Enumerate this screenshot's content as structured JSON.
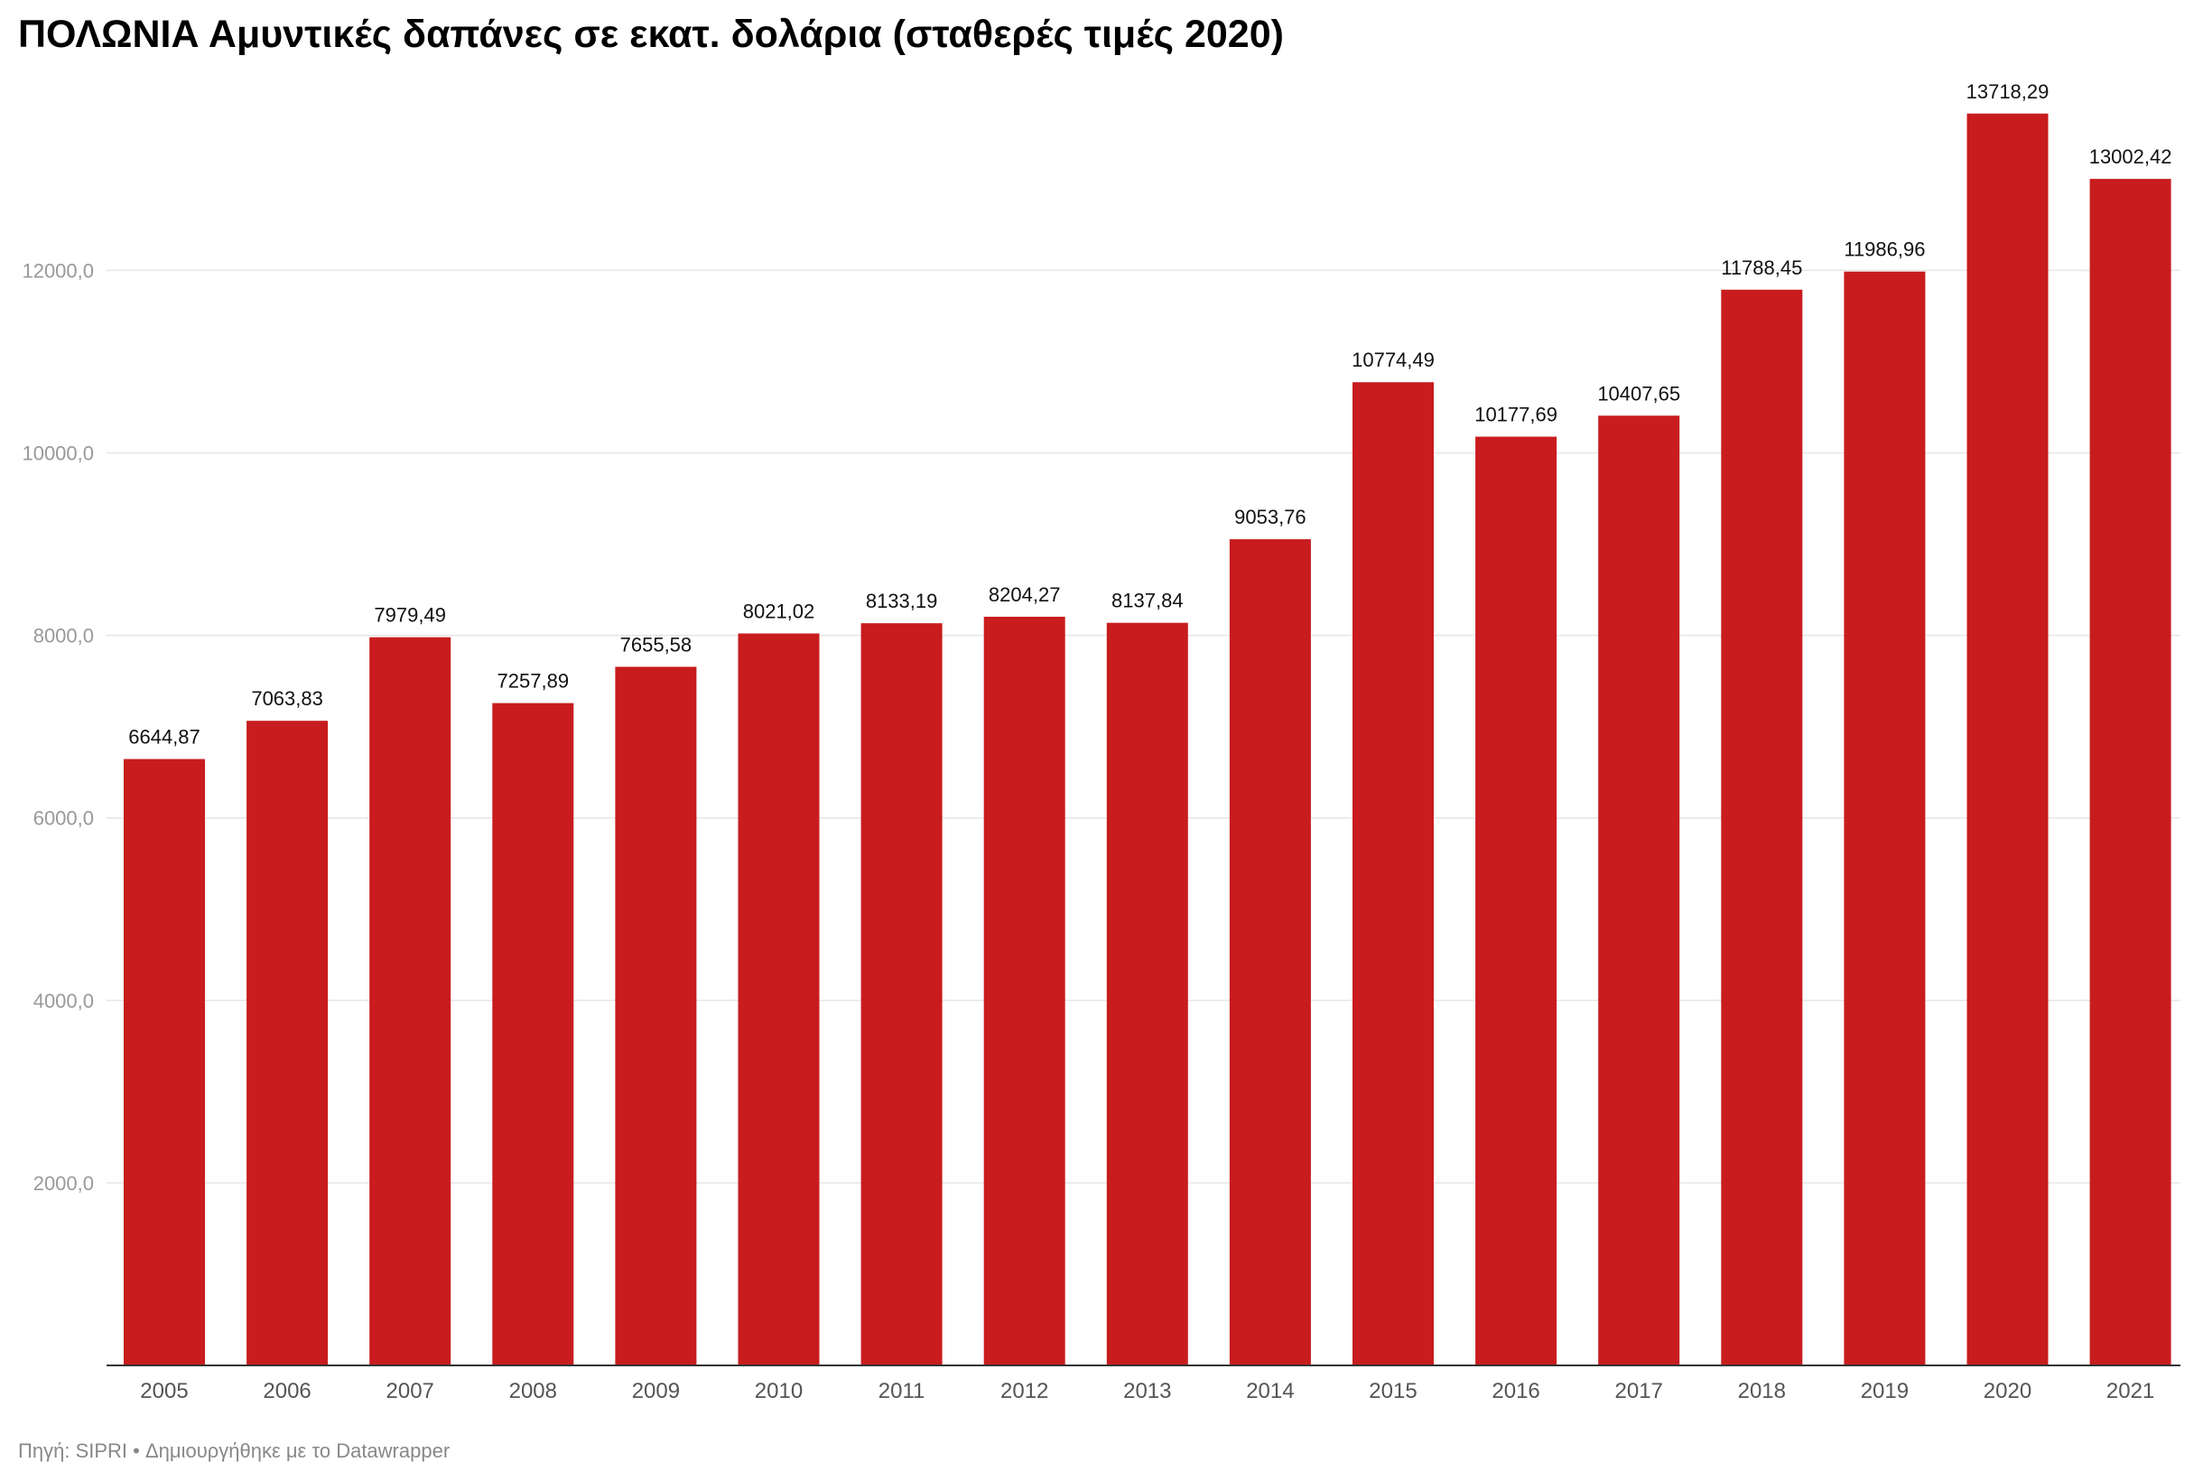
{
  "header": {
    "title": "ΠΟΛΩΝΙΑ Αμυντικές δαπάνες σε εκατ. δολάρια (σταθερές τιμές 2020)"
  },
  "footer": {
    "text": "Πηγή: SIPRI • Δημιουργήθηκε με το Datawrapper"
  },
  "colors": {
    "bar": "#c81c1e",
    "grid": "#e6e6e6",
    "axis": "#333333"
  },
  "chart_data": {
    "type": "bar",
    "title": "ΠΟΛΩΝΙΑ Αμυντικές δαπάνες σε εκατ. δολάρια (σταθερές τιμές 2020)",
    "xlabel": "",
    "ylabel": "",
    "categories": [
      "2005",
      "2006",
      "2007",
      "2008",
      "2009",
      "2010",
      "2011",
      "2012",
      "2013",
      "2014",
      "2015",
      "2016",
      "2017",
      "2018",
      "2019",
      "2020",
      "2021"
    ],
    "values": [
      6644.87,
      7063.83,
      7979.49,
      7257.89,
      7655.58,
      8021.02,
      8133.19,
      8204.27,
      8137.84,
      9053.76,
      10774.49,
      10177.69,
      10407.65,
      11788.45,
      11986.96,
      13718.29,
      13002.42
    ],
    "value_labels": [
      "6644,87",
      "7063,83",
      "7979,49",
      "7257,89",
      "7655,58",
      "8021,02",
      "8133,19",
      "8204,27",
      "8137,84",
      "9053,76",
      "10774,49",
      "10177,69",
      "10407,65",
      "11788,45",
      "11986,96",
      "13718,29",
      "13002,42"
    ],
    "yticks": [
      2000,
      4000,
      6000,
      8000,
      10000,
      12000
    ],
    "ytick_labels": [
      "2000,0",
      "4000,0",
      "6000,0",
      "8000,0",
      "10000,0",
      "12000,0"
    ],
    "ylim": [
      0,
      15000
    ],
    "grid": true,
    "legend": "none"
  }
}
